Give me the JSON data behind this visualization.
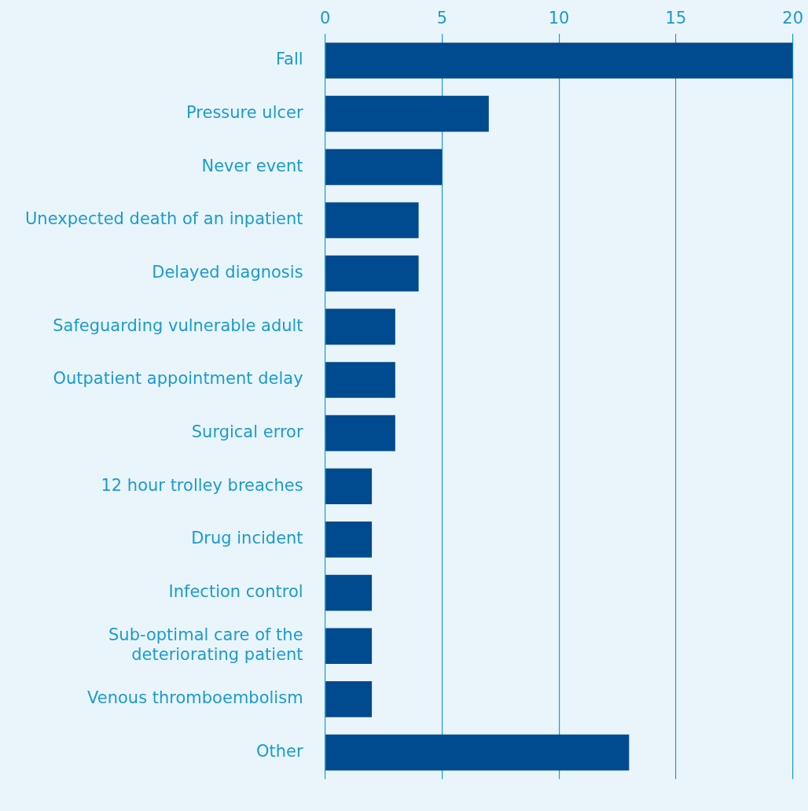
{
  "chart_data": {
    "type": "bar",
    "orientation": "horizontal",
    "categories": [
      "Fall",
      "Pressure ulcer",
      "Never event",
      "Unexpected death of an inpatient",
      "Delayed diagnosis",
      "Safeguarding vulnerable adult",
      "Outpatient appointment delay",
      "Surgical error",
      "12 hour trolley breaches",
      "Drug incident",
      "Infection control",
      "Sub-optimal care of the\ndeteriorating patient",
      "Venous thromboembolism",
      "Other"
    ],
    "values": [
      20,
      7,
      5,
      4,
      4,
      3,
      3,
      3,
      2,
      2,
      2,
      2,
      2,
      13
    ],
    "color": "#004a8f",
    "xlim": [
      0,
      20
    ],
    "xticks": [
      0,
      5,
      10,
      15,
      20
    ],
    "grid": "x",
    "legend": false
  }
}
